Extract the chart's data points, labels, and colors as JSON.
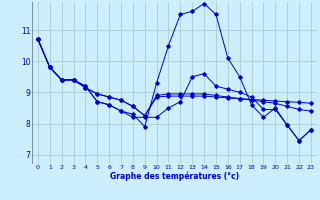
{
  "xlabel": "Graphe des températures (°c)",
  "background_color": "#cceeff",
  "grid_color": "#aacccc",
  "line_color": "#0000cc",
  "x_ticks": [
    0,
    1,
    2,
    3,
    4,
    5,
    6,
    7,
    8,
    9,
    10,
    11,
    12,
    13,
    14,
    15,
    16,
    17,
    18,
    19,
    20,
    21,
    22,
    23
  ],
  "y_ticks": [
    7,
    8,
    9,
    10,
    11
  ],
  "ylim": [
    6.7,
    11.9
  ],
  "xlim": [
    -0.5,
    23.5
  ],
  "series": [
    [
      10.7,
      9.8,
      9.4,
      9.4,
      9.2,
      8.7,
      8.6,
      8.4,
      8.3,
      7.9,
      9.3,
      10.5,
      11.5,
      11.6,
      11.85,
      11.5,
      10.1,
      9.5,
      8.6,
      8.2,
      8.5,
      7.95,
      7.45,
      7.8
    ],
    [
      10.7,
      9.8,
      9.4,
      9.4,
      9.15,
      8.95,
      8.85,
      8.75,
      8.55,
      8.25,
      8.9,
      8.95,
      8.95,
      8.95,
      8.95,
      8.9,
      8.85,
      8.8,
      8.75,
      8.7,
      8.65,
      8.55,
      8.45,
      8.4
    ],
    [
      10.7,
      9.8,
      9.4,
      9.4,
      9.15,
      8.95,
      8.85,
      8.75,
      8.55,
      8.25,
      8.85,
      8.88,
      8.88,
      8.88,
      8.88,
      8.85,
      8.82,
      8.8,
      8.77,
      8.75,
      8.72,
      8.7,
      8.68,
      8.65
    ],
    [
      10.7,
      9.8,
      9.4,
      9.4,
      9.2,
      8.7,
      8.6,
      8.4,
      8.2,
      8.2,
      8.2,
      8.5,
      8.7,
      9.5,
      9.6,
      9.2,
      9.1,
      9.0,
      8.85,
      8.45,
      8.45,
      7.95,
      7.45,
      7.8
    ]
  ]
}
